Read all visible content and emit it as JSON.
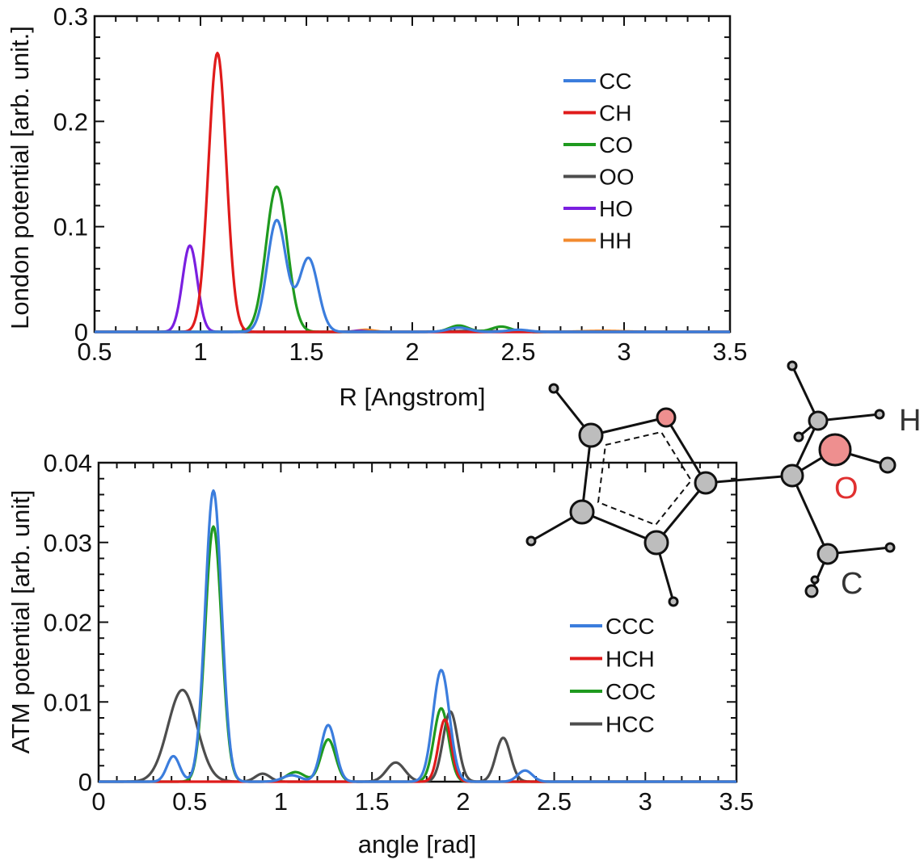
{
  "chart_data": [
    {
      "type": "line",
      "title": "",
      "xlabel": "R [Angstrom]",
      "ylabel": "London potential [arb. unit.]",
      "xlim": [
        0.5,
        3.5
      ],
      "ylim": [
        0,
        0.3
      ],
      "xticks": [
        "0.5",
        "1",
        "1.5",
        "2",
        "2.5",
        "3",
        "3.5"
      ],
      "yticks": [
        "0",
        "0.1",
        "0.2",
        "0.3"
      ],
      "legend": "top-right",
      "series": [
        {
          "name": "CC",
          "color": "#3b7ddd",
          "peaks": [
            [
              1.36,
              0.106,
              0.045
            ],
            [
              1.51,
              0.07,
              0.045
            ],
            [
              2.22,
              0.004,
              0.05
            ],
            [
              2.5,
              0.002,
              0.05
            ]
          ]
        },
        {
          "name": "CH",
          "color": "#e01b1b",
          "peaks": [
            [
              1.08,
              0.265,
              0.042
            ]
          ]
        },
        {
          "name": "CO",
          "color": "#1f9a1f",
          "peaks": [
            [
              1.36,
              0.138,
              0.05
            ],
            [
              2.22,
              0.006,
              0.045
            ],
            [
              2.42,
              0.005,
              0.045
            ]
          ]
        },
        {
          "name": "OO",
          "color": "#4d4d4d",
          "peaks": [
            [
              2.3,
              0.001,
              0.1
            ]
          ]
        },
        {
          "name": "HO",
          "color": "#7a1fe0",
          "peaks": [
            [
              0.95,
              0.082,
              0.035
            ],
            [
              1.75,
              0.001,
              0.03
            ]
          ]
        },
        {
          "name": "HH",
          "color": "#f28a2e",
          "peaks": [
            [
              1.78,
              0.002,
              0.04
            ],
            [
              2.9,
              0.001,
              0.1
            ]
          ]
        }
      ]
    },
    {
      "type": "line",
      "title": "",
      "xlabel": "angle [rad]",
      "ylabel": "ATM potential [arb. unit]",
      "xlim": [
        0,
        3.5
      ],
      "ylim": [
        0,
        0.04
      ],
      "xticks": [
        "0",
        "0.5",
        "1",
        "1.5",
        "2",
        "2.5",
        "3",
        "3.5"
      ],
      "yticks": [
        "0",
        "0.01",
        "0.02",
        "0.03",
        "0.04"
      ],
      "legend": "right",
      "series": [
        {
          "name": "CCC",
          "color": "#3b7ddd",
          "peaks": [
            [
              0.41,
              0.0032,
              0.035
            ],
            [
              0.63,
              0.0365,
              0.045
            ],
            [
              1.06,
              0.0008,
              0.05
            ],
            [
              1.26,
              0.0071,
              0.04
            ],
            [
              1.88,
              0.014,
              0.045
            ],
            [
              2.34,
              0.0014,
              0.04
            ]
          ]
        },
        {
          "name": "HCH",
          "color": "#e01b1b",
          "peaks": [
            [
              1.9,
              0.0078,
              0.035
            ]
          ]
        },
        {
          "name": "COC",
          "color": "#1f9a1f",
          "peaks": [
            [
              0.63,
              0.032,
              0.045
            ],
            [
              1.08,
              0.0012,
              0.05
            ],
            [
              1.26,
              0.0053,
              0.04
            ],
            [
              1.88,
              0.0092,
              0.04
            ]
          ]
        },
        {
          "name": "HCC",
          "color": "#4d4d4d",
          "peaks": [
            [
              0.46,
              0.0115,
              0.08
            ],
            [
              0.9,
              0.001,
              0.04
            ],
            [
              1.63,
              0.0024,
              0.05
            ],
            [
              1.93,
              0.0088,
              0.04
            ],
            [
              2.22,
              0.0055,
              0.04
            ]
          ]
        }
      ]
    }
  ],
  "molecule": {
    "labels": {
      "h": "H",
      "o": "O",
      "c": "C"
    },
    "colors": {
      "carbon": "#bdbdbd",
      "oxygen": "#ee8f8f",
      "bond": "#111111",
      "o_label": "#e03030",
      "label": "#333333"
    }
  }
}
